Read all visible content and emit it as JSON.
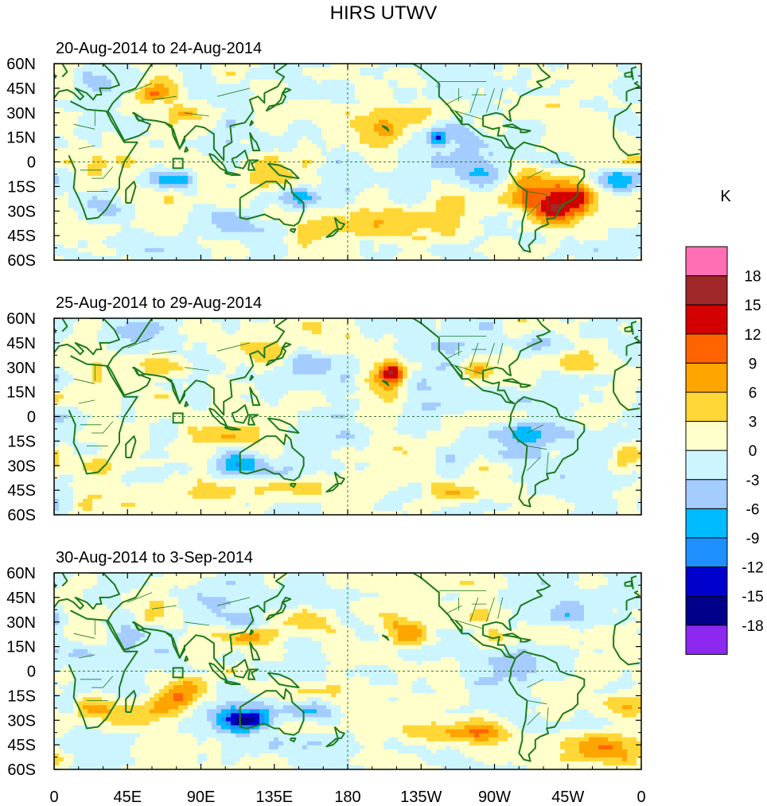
{
  "chart_data": {
    "type": "heatmap",
    "title": "HIRS UTWV",
    "units": "K",
    "xlabel": "",
    "ylabel": "",
    "x_ticks": [
      "0",
      "45E",
      "90E",
      "135E",
      "180",
      "135W",
      "90W",
      "45W",
      "0"
    ],
    "y_ticks": [
      "60N",
      "45N",
      "30N",
      "15N",
      "0",
      "15S",
      "30S",
      "45S",
      "60S"
    ],
    "colorbar": {
      "labels": [
        "18",
        "15",
        "12",
        "9",
        "6",
        "3",
        "0",
        "-3",
        "-6",
        "-9",
        "-12",
        "-15",
        "-18"
      ],
      "colors": [
        "#ff6fb4",
        "#a02828",
        "#d20000",
        "#ff6400",
        "#ffa500",
        "#ffd737",
        "#ffffcc",
        "#ccf5ff",
        "#a5ccff",
        "#00bbff",
        "#1e90ff",
        "#0000cd",
        "#00008b",
        "#8c28f0"
      ]
    },
    "panels": [
      {
        "subtitle": "20-Aug-2014 to 24-Aug-2014",
        "anomalies": [
          {
            "lon": 305,
            "lat": -27,
            "amp": 14,
            "rx": 20,
            "ry": 11
          },
          {
            "lon": 320,
            "lat": -20,
            "amp": 10,
            "rx": 15,
            "ry": 10
          },
          {
            "lon": 290,
            "lat": -12,
            "amp": 6,
            "rx": 14,
            "ry": 10
          },
          {
            "lon": 225,
            "lat": 28,
            "amp": 6,
            "rx": 30,
            "ry": 10
          },
          {
            "lon": 205,
            "lat": 17,
            "amp": 4,
            "rx": 20,
            "ry": 8
          },
          {
            "lon": 60,
            "lat": 42,
            "amp": 7,
            "rx": 12,
            "ry": 7
          },
          {
            "lon": 80,
            "lat": 30,
            "amp": 6,
            "rx": 8,
            "ry": 5
          },
          {
            "lon": 200,
            "lat": -35,
            "amp": 5,
            "rx": 35,
            "ry": 8
          },
          {
            "lon": 170,
            "lat": -40,
            "amp": 4,
            "rx": 20,
            "ry": 6
          },
          {
            "lon": 120,
            "lat": -10,
            "amp": 4,
            "rx": 25,
            "ry": 6
          },
          {
            "lon": 45,
            "lat": 0,
            "amp": 3,
            "rx": 8,
            "ry": 7
          },
          {
            "lon": 40,
            "lat": -40,
            "amp": 3,
            "rx": 20,
            "ry": 6
          },
          {
            "lon": 75,
            "lat": -10,
            "amp": -8,
            "rx": 13,
            "ry": 6
          },
          {
            "lon": 245,
            "lat": 20,
            "amp": -6,
            "rx": 18,
            "ry": 14
          },
          {
            "lon": 235,
            "lat": 15,
            "amp": -10,
            "rx": 5,
            "ry": 4
          },
          {
            "lon": 345,
            "lat": -12,
            "amp": -7,
            "rx": 12,
            "ry": 7
          },
          {
            "lon": 265,
            "lat": -5,
            "amp": -4,
            "rx": 25,
            "ry": 10
          },
          {
            "lon": 100,
            "lat": 10,
            "amp": -4,
            "rx": 12,
            "ry": 8
          },
          {
            "lon": 210,
            "lat": 40,
            "amp": -3,
            "rx": 15,
            "ry": 6
          },
          {
            "lon": 110,
            "lat": -40,
            "amp": -4,
            "rx": 25,
            "ry": 7
          },
          {
            "lon": 150,
            "lat": -22,
            "amp": -4,
            "rx": 12,
            "ry": 6
          },
          {
            "lon": 25,
            "lat": 50,
            "amp": -3,
            "rx": 20,
            "ry": 8
          },
          {
            "lon": 30,
            "lat": -30,
            "amp": -3,
            "rx": 15,
            "ry": 8
          }
        ]
      },
      {
        "subtitle": "25-Aug-2014 to 29-Aug-2014",
        "anomalies": [
          {
            "lon": 208,
            "lat": 27,
            "amp": 12,
            "rx": 8,
            "ry": 6
          },
          {
            "lon": 205,
            "lat": 15,
            "amp": 6,
            "rx": 10,
            "ry": 14
          },
          {
            "lon": 190,
            "lat": -40,
            "amp": 4,
            "rx": 40,
            "ry": 9
          },
          {
            "lon": 210,
            "lat": -22,
            "amp": 3,
            "rx": 20,
            "ry": 8
          },
          {
            "lon": 25,
            "lat": -30,
            "amp": 7,
            "rx": 12,
            "ry": 7
          },
          {
            "lon": 350,
            "lat": -25,
            "amp": 6,
            "rx": 10,
            "ry": 8
          },
          {
            "lon": 110,
            "lat": -12,
            "amp": 5,
            "rx": 20,
            "ry": 6
          },
          {
            "lon": 260,
            "lat": 27,
            "amp": 5,
            "rx": 10,
            "ry": 6
          },
          {
            "lon": 320,
            "lat": 30,
            "amp": 4,
            "rx": 12,
            "ry": 6
          },
          {
            "lon": 70,
            "lat": 30,
            "amp": 4,
            "rx": 15,
            "ry": 6
          },
          {
            "lon": 130,
            "lat": 40,
            "amp": 4,
            "rx": 15,
            "ry": 6
          },
          {
            "lon": 350,
            "lat": 10,
            "amp": 4,
            "rx": 10,
            "ry": 6
          },
          {
            "lon": 250,
            "lat": -48,
            "amp": 4,
            "rx": 20,
            "ry": 6
          },
          {
            "lon": 115,
            "lat": -28,
            "amp": -8,
            "rx": 15,
            "ry": 6
          },
          {
            "lon": 230,
            "lat": 10,
            "amp": -5,
            "rx": 20,
            "ry": 12
          },
          {
            "lon": 290,
            "lat": -10,
            "amp": -5,
            "rx": 15,
            "ry": 12
          },
          {
            "lon": 330,
            "lat": -20,
            "amp": -4,
            "rx": 15,
            "ry": 10
          },
          {
            "lon": 150,
            "lat": 25,
            "amp": -4,
            "rx": 15,
            "ry": 8
          },
          {
            "lon": 60,
            "lat": -35,
            "amp": -3,
            "rx": 15,
            "ry": 6
          },
          {
            "lon": 300,
            "lat": 45,
            "amp": -4,
            "rx": 15,
            "ry": 6
          },
          {
            "lon": 45,
            "lat": 50,
            "amp": -3,
            "rx": 20,
            "ry": 7
          }
        ]
      },
      {
        "subtitle": "30-Aug-2014 to 3-Sep-2014",
        "anomalies": [
          {
            "lon": 120,
            "lat": -30,
            "amp": -14,
            "rx": 14,
            "ry": 6
          },
          {
            "lon": 108,
            "lat": -25,
            "amp": -6,
            "rx": 15,
            "ry": 8
          },
          {
            "lon": 160,
            "lat": -25,
            "amp": -7,
            "rx": 15,
            "ry": 6
          },
          {
            "lon": 45,
            "lat": 10,
            "amp": -5,
            "rx": 10,
            "ry": 15
          },
          {
            "lon": 30,
            "lat": 45,
            "amp": -4,
            "rx": 15,
            "ry": 6
          },
          {
            "lon": 115,
            "lat": 30,
            "amp": -4,
            "rx": 12,
            "ry": 6
          },
          {
            "lon": 315,
            "lat": 35,
            "amp": -5,
            "rx": 15,
            "ry": 6
          },
          {
            "lon": 265,
            "lat": 0,
            "amp": -4,
            "rx": 25,
            "ry": 10
          },
          {
            "lon": 75,
            "lat": -15,
            "amp": 9,
            "rx": 15,
            "ry": 10
          },
          {
            "lon": 50,
            "lat": -30,
            "amp": 6,
            "rx": 20,
            "ry": 7
          },
          {
            "lon": 25,
            "lat": -22,
            "amp": 5,
            "rx": 10,
            "ry": 8
          },
          {
            "lon": 215,
            "lat": 25,
            "amp": 7,
            "rx": 12,
            "ry": 10
          },
          {
            "lon": 250,
            "lat": -38,
            "amp": 8,
            "rx": 30,
            "ry": 6
          },
          {
            "lon": 335,
            "lat": -48,
            "amp": 9,
            "rx": 20,
            "ry": 9
          },
          {
            "lon": 120,
            "lat": 20,
            "amp": 6,
            "rx": 15,
            "ry": 5
          },
          {
            "lon": 160,
            "lat": 30,
            "amp": 4,
            "rx": 15,
            "ry": 7
          },
          {
            "lon": 270,
            "lat": 20,
            "amp": 4,
            "rx": 10,
            "ry": 7
          },
          {
            "lon": 350,
            "lat": -20,
            "amp": 4,
            "rx": 12,
            "ry": 7
          },
          {
            "lon": 60,
            "lat": 35,
            "amp": 4,
            "rx": 10,
            "ry": 6
          }
        ]
      }
    ]
  }
}
